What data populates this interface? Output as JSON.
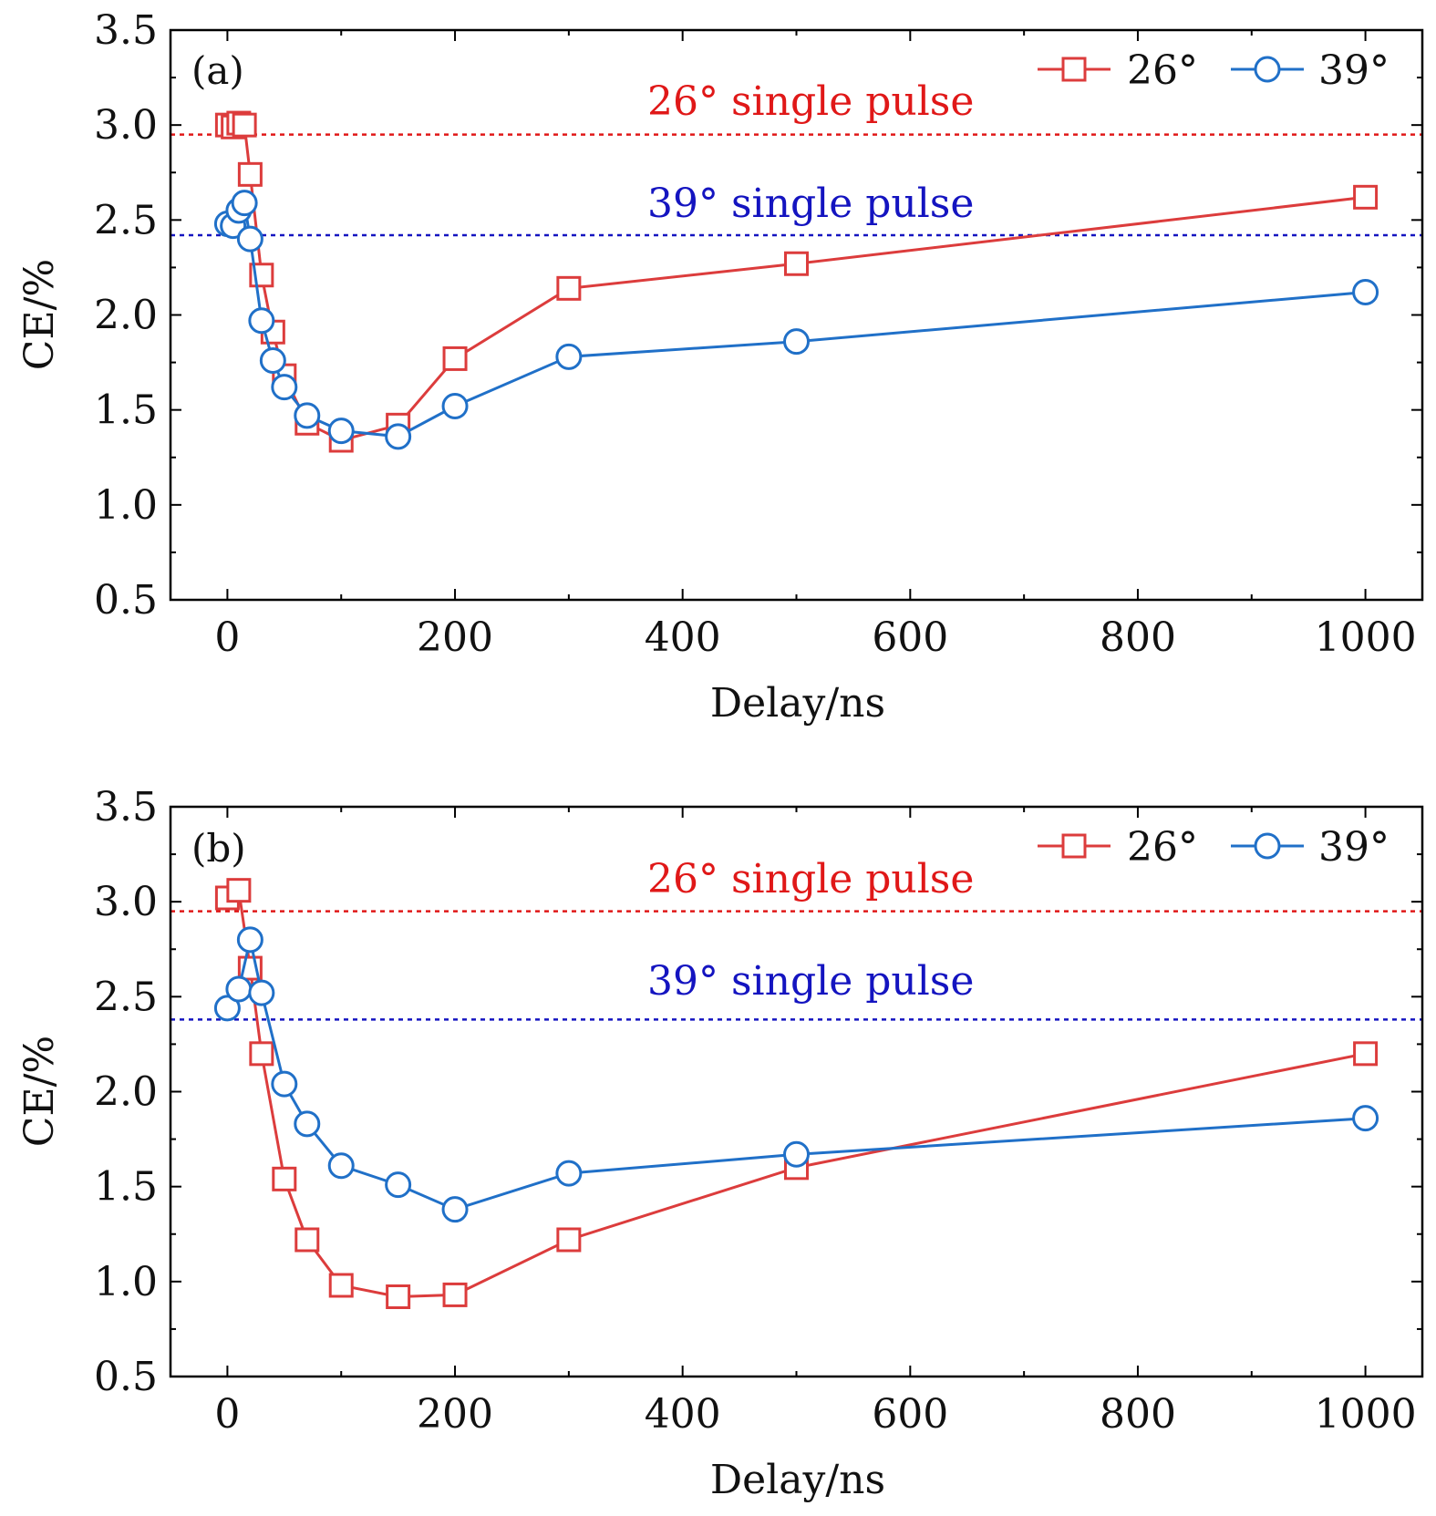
{
  "colors": {
    "red": "#dc3c3c",
    "blue": "#2070c8",
    "ref_red": "#e01818",
    "ref_blue": "#1414c0",
    "axis": "#000000"
  },
  "chart_data": [
    {
      "type": "line",
      "panel_label": "(a)",
      "xlabel": "Delay/ns",
      "ylabel": "CE/%",
      "xlim": [
        -50,
        1050
      ],
      "ylim": [
        0.5,
        3.5
      ],
      "x_ticks": [
        0,
        200,
        400,
        600,
        800,
        1000
      ],
      "x_tick_labels": [
        "0",
        "200",
        "400",
        "600",
        "800",
        "1000"
      ],
      "y_ticks": [
        0.5,
        1.0,
        1.5,
        2.0,
        2.5,
        3.0,
        3.5
      ],
      "y_tick_labels": [
        "0.5",
        "1.0",
        "1.5",
        "2.0",
        "2.5",
        "3.0",
        "3.5"
      ],
      "legend_position": "top-right",
      "series": [
        {
          "name": "26°",
          "marker": "square",
          "color": "#dc3c3c",
          "x": [
            0,
            5,
            10,
            15,
            20,
            30,
            40,
            50,
            70,
            100,
            150,
            200,
            300,
            500,
            1000
          ],
          "y": [
            3.0,
            2.99,
            3.01,
            3.0,
            2.74,
            2.21,
            1.91,
            1.68,
            1.43,
            1.34,
            1.42,
            1.77,
            2.14,
            2.27,
            2.62
          ]
        },
        {
          "name": "39°",
          "marker": "circle",
          "color": "#2070c8",
          "x": [
            0,
            5,
            10,
            15,
            20,
            30,
            40,
            50,
            70,
            100,
            150,
            200,
            300,
            500,
            1000
          ],
          "y": [
            2.48,
            2.47,
            2.55,
            2.59,
            2.4,
            1.97,
            1.76,
            1.62,
            1.47,
            1.39,
            1.36,
            1.52,
            1.78,
            1.86,
            2.12
          ]
        }
      ],
      "reference_lines": [
        {
          "label": "26° single pulse",
          "y": 2.95,
          "color": "#e01818"
        },
        {
          "label": "39° single pulse",
          "y": 2.42,
          "color": "#1414c0"
        }
      ]
    },
    {
      "type": "line",
      "panel_label": "(b)",
      "xlabel": "Delay/ns",
      "ylabel": "CE/%",
      "xlim": [
        -50,
        1050
      ],
      "ylim": [
        0.5,
        3.5
      ],
      "x_ticks": [
        0,
        200,
        400,
        600,
        800,
        1000
      ],
      "x_tick_labels": [
        "0",
        "200",
        "400",
        "600",
        "800",
        "1000"
      ],
      "y_ticks": [
        0.5,
        1.0,
        1.5,
        2.0,
        2.5,
        3.0,
        3.5
      ],
      "y_tick_labels": [
        "0.5",
        "1.0",
        "1.5",
        "2.0",
        "2.5",
        "3.0",
        "3.5"
      ],
      "legend_position": "top-right",
      "series": [
        {
          "name": "26°",
          "marker": "square",
          "color": "#dc3c3c",
          "x": [
            0,
            10,
            20,
            30,
            50,
            70,
            100,
            150,
            200,
            300,
            500,
            1000
          ],
          "y": [
            3.02,
            3.06,
            2.65,
            2.2,
            1.54,
            1.22,
            0.98,
            0.92,
            0.93,
            1.22,
            1.6,
            2.2
          ]
        },
        {
          "name": "39°",
          "marker": "circle",
          "color": "#2070c8",
          "x": [
            0,
            10,
            20,
            30,
            50,
            70,
            100,
            150,
            200,
            300,
            500,
            1000
          ],
          "y": [
            2.44,
            2.54,
            2.8,
            2.52,
            2.04,
            1.83,
            1.61,
            1.51,
            1.38,
            1.57,
            1.67,
            1.86
          ]
        }
      ],
      "reference_lines": [
        {
          "label": "26° single pulse",
          "y": 2.95,
          "color": "#e01818"
        },
        {
          "label": "39° single pulse",
          "y": 2.38,
          "color": "#1414c0"
        }
      ]
    }
  ]
}
